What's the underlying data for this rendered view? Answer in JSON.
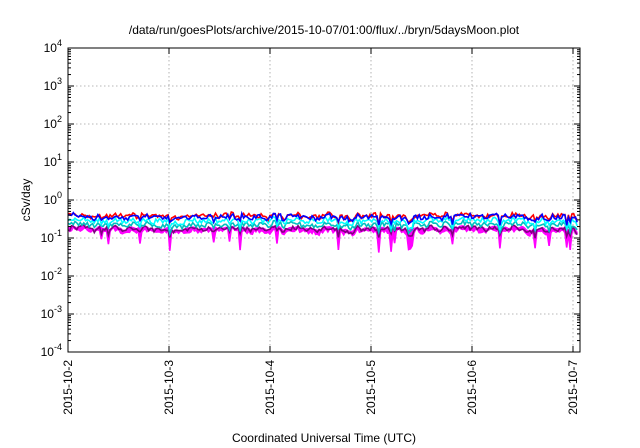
{
  "chart_data": {
    "type": "line",
    "title": "/data/run/goesPlots/archive/2015-10-07/01:00/flux/../bryn/5daysMoon.plot",
    "xlabel": "Coordinated Universal Time (UTC)",
    "ylabel": "cSv/day",
    "yscale": "log",
    "ylim": [
      0.0001,
      10000
    ],
    "xlim": [
      "2015-10-02",
      "2015-10-07 01:00"
    ],
    "grid": true,
    "x_ticks": [
      "2015-10-2",
      "2015-10-3",
      "2015-10-4",
      "2015-10-5",
      "2015-10-6",
      "2015-10-7"
    ],
    "y_ticks": [
      {
        "base": "10",
        "exp": "-4"
      },
      {
        "base": "10",
        "exp": "-3"
      },
      {
        "base": "10",
        "exp": "-2"
      },
      {
        "base": "10",
        "exp": "-1"
      },
      {
        "base": "10",
        "exp": "0"
      },
      {
        "base": "10",
        "exp": "1"
      },
      {
        "base": "10",
        "exp": "2"
      },
      {
        "base": "10",
        "exp": "3"
      },
      {
        "base": "10",
        "exp": "4"
      }
    ],
    "series": [
      {
        "color": "#ff00ff",
        "typical_value": 0.15,
        "fill": true
      },
      {
        "color": "#7f007f",
        "typical_value": 0.17
      },
      {
        "color": "#00bfbf",
        "typical_value": 0.22
      },
      {
        "color": "#00ffff",
        "typical_value": 0.28
      },
      {
        "color": "#ff0000",
        "typical_value": 0.38
      },
      {
        "color": "#0000ff",
        "typical_value": 0.35
      }
    ]
  }
}
